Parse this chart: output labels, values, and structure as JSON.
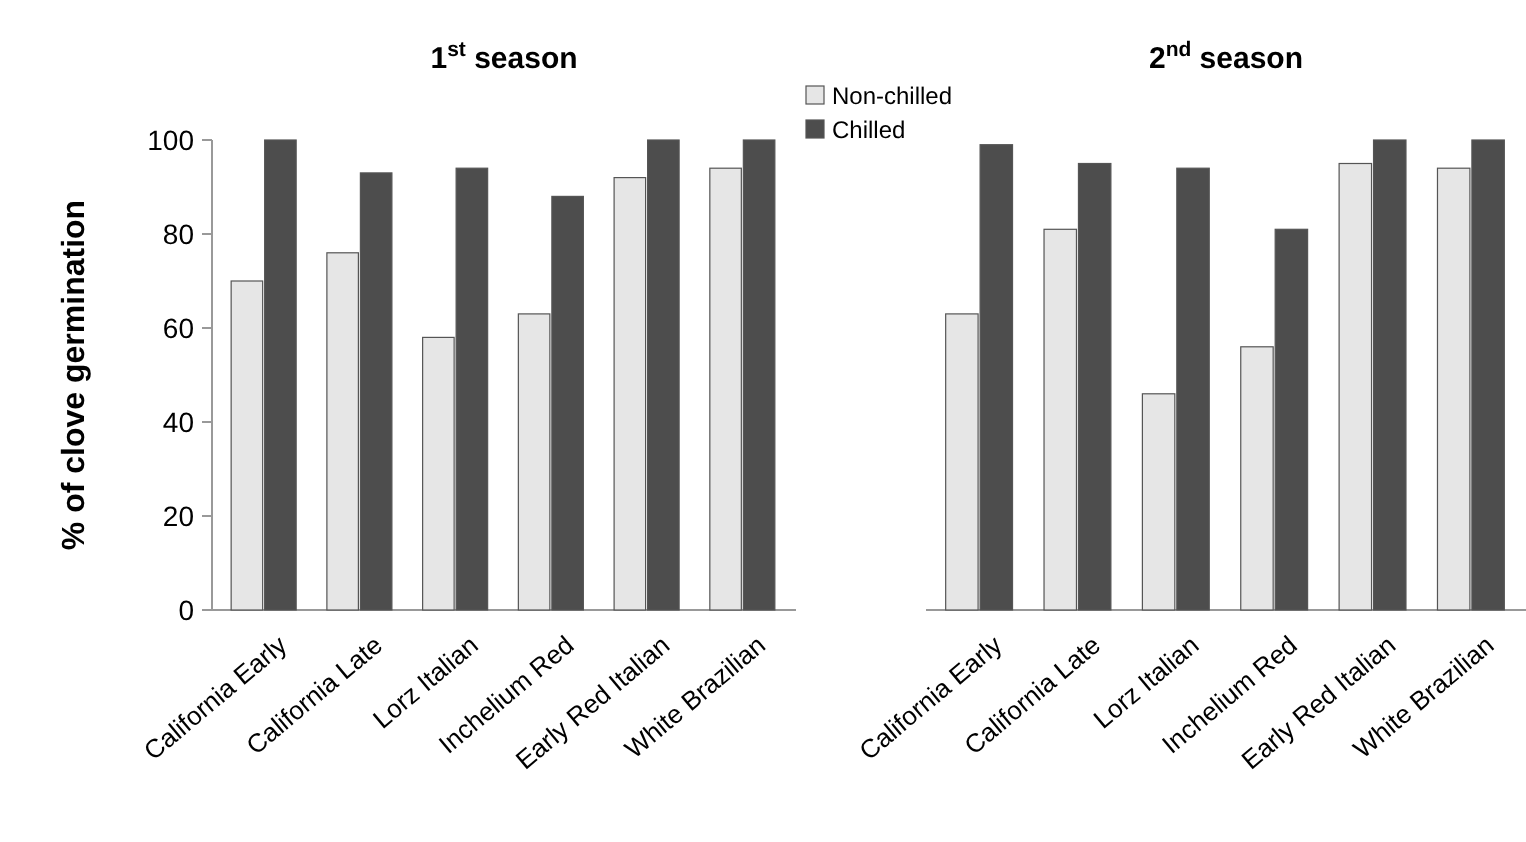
{
  "chart_data": [
    {
      "type": "bar",
      "title": "1$^{st}$ season",
      "ylabel": "% of clove germination",
      "categories": [
        "California Early",
        "California Late",
        "Lorz Italian",
        "Inchelium Red",
        "Early Red Italian",
        "White Brazilian"
      ],
      "series": [
        {
          "color": "#e6e6e6",
          "values": [
            70,
            76,
            58,
            63,
            92,
            94
          ]
        },
        {
          "color": "#4d4d4d",
          "values": [
            100,
            93,
            94,
            88,
            100,
            100
          ]
        }
      ],
      "ylim": [
        0,
        100
      ],
      "yticks": [
        0,
        20,
        40,
        60,
        80,
        100
      ],
      "legend": false
    },
    {
      "type": "bar",
      "title": "2$^{nd}$ season",
      "categories": [
        "California Early",
        "California Late",
        "Lorz Italian",
        "Inchelium Red",
        "Early Red Italian",
        "White Brazilian"
      ],
      "series": [
        {
          "name": "Non-chilled",
          "color": "#e6e6e6",
          "values": [
            63,
            81,
            46,
            56,
            95,
            94
          ]
        },
        {
          "name": "Chilled",
          "color": "#4d4d4d",
          "values": [
            99,
            95,
            94,
            81,
            100,
            100
          ]
        }
      ],
      "ylim": [
        0,
        100
      ],
      "yticks": [
        0,
        20,
        40,
        60,
        80,
        100
      ],
      "tick_labels": "x",
      "legend": "top left"
    }
  ]
}
